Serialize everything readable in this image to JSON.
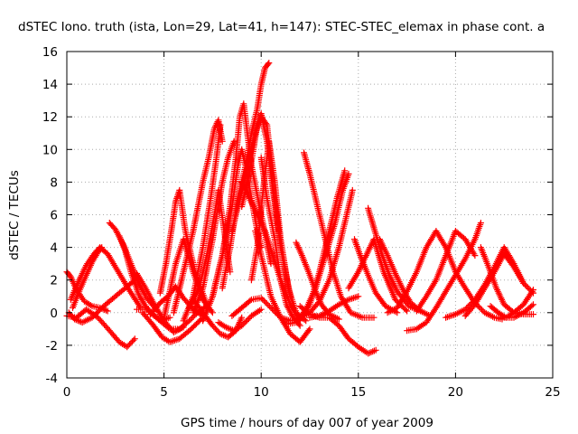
{
  "chart_data": {
    "type": "scatter",
    "title": "dSTEC Iono. truth (ista, Lon=29, Lat=41, h=147): STEC-STEC_elemax in phase cont. a",
    "xlabel": "GPS time / hours of day 007 of year 2009",
    "ylabel": "dSTEC  / TECUs",
    "xlim": [
      0,
      25
    ],
    "ylim": [
      -4,
      16
    ],
    "xticks": [
      0,
      5,
      10,
      15,
      20,
      25
    ],
    "yticks": [
      -4,
      -2,
      0,
      2,
      4,
      6,
      8,
      10,
      12,
      14,
      16
    ],
    "grid": true,
    "marker": "+",
    "color": "#ff0000",
    "series": [
      {
        "x": [
          0.0,
          0.2,
          0.5,
          0.9,
          1.3,
          1.7,
          2.1
        ],
        "y": [
          2.5,
          2.2,
          1.4,
          0.7,
          0.4,
          0.3,
          0.1
        ]
      },
      {
        "x": [
          0.1,
          0.4,
          0.8,
          1.3,
          1.9,
          2.5,
          3.1,
          3.5
        ],
        "y": [
          0.0,
          -0.4,
          -0.6,
          -0.3,
          0.4,
          1.0,
          1.6,
          2.0
        ]
      },
      {
        "x": [
          0.0,
          0.5,
          1.0,
          1.6,
          2.2,
          2.7,
          3.1,
          3.5
        ],
        "y": [
          -0.2,
          -0.3,
          0.2,
          -0.3,
          -1.1,
          -1.8,
          -2.1,
          -1.6
        ]
      },
      {
        "x": [
          0.2,
          0.6,
          1.0,
          1.4,
          1.7,
          2.1,
          2.6,
          3.2,
          3.8
        ],
        "y": [
          0.8,
          1.9,
          2.9,
          3.6,
          4.0,
          3.6,
          2.6,
          1.4,
          0.3
        ]
      },
      {
        "x": [
          0.3,
          0.6,
          1.0,
          1.3,
          1.6,
          1.8
        ],
        "y": [
          0.3,
          1.2,
          2.3,
          3.1,
          3.7,
          4.0
        ]
      },
      {
        "x": [
          2.2,
          2.5,
          2.9,
          3.3,
          3.7,
          4.1,
          4.6
        ],
        "y": [
          5.5,
          5.1,
          4.2,
          3.0,
          1.8,
          0.9,
          0.2
        ]
      },
      {
        "x": [
          2.7,
          3.0,
          3.3,
          3.7,
          4.2,
          4.8,
          5.3
        ],
        "y": [
          4.7,
          3.8,
          2.5,
          1.1,
          0.1,
          -0.5,
          -0.3
        ]
      },
      {
        "x": [
          3.6,
          4.0,
          4.5,
          5.0,
          5.5,
          6.0
        ],
        "y": [
          2.4,
          1.6,
          0.5,
          -0.5,
          -1.2,
          -0.9
        ]
      },
      {
        "x": [
          3.9,
          4.4,
          4.9,
          5.3,
          5.8,
          6.4,
          7.0
        ],
        "y": [
          0.0,
          -0.7,
          -1.5,
          -1.8,
          -1.6,
          -1.0,
          -0.3
        ]
      },
      {
        "x": [
          3.6,
          4.2,
          4.8,
          5.3,
          5.8,
          6.3,
          6.8,
          7.2
        ],
        "y": [
          0.2,
          0.2,
          -0.5,
          -1.0,
          -1.0,
          -0.5,
          0.1,
          0.4
        ]
      },
      {
        "x": [
          4.3,
          4.8,
          5.2,
          5.6,
          6.0,
          6.5,
          7.0
        ],
        "y": [
          -0.1,
          0.6,
          1.0,
          1.6,
          0.9,
          0.2,
          -0.2
        ]
      },
      {
        "x": [
          5.0,
          5.3,
          5.6,
          6.0,
          6.5,
          7.0,
          7.5
        ],
        "y": [
          -0.3,
          1.3,
          3.0,
          4.5,
          2.5,
          0.8,
          0.0
        ]
      },
      {
        "x": [
          4.8,
          5.1,
          5.4,
          5.6,
          5.8,
          6.1,
          6.6,
          7.2
        ],
        "y": [
          1.2,
          3.0,
          5.2,
          6.8,
          7.5,
          5.0,
          2.5,
          0.5
        ]
      },
      {
        "x": [
          5.5,
          6.0,
          6.5,
          7.0,
          7.3,
          7.6,
          7.8,
          8.0
        ],
        "y": [
          0.0,
          2.5,
          5.0,
          8.0,
          9.5,
          11.3,
          11.8,
          10.5
        ]
      },
      {
        "x": [
          6.0,
          6.5,
          7.0,
          7.4,
          7.7,
          7.9
        ],
        "y": [
          -0.5,
          1.0,
          4.0,
          7.0,
          9.5,
          11.5
        ]
      },
      {
        "x": [
          6.5,
          7.0,
          7.5,
          8.0,
          8.3,
          8.6
        ],
        "y": [
          0.0,
          1.5,
          4.5,
          8.0,
          9.5,
          10.5
        ]
      },
      {
        "x": [
          6.3,
          6.8,
          7.2,
          7.6,
          7.8,
          8.1,
          8.4
        ],
        "y": [
          0.3,
          1.5,
          3.5,
          6.0,
          7.5,
          5.0,
          2.5
        ]
      },
      {
        "x": [
          7.0,
          7.5,
          8.0,
          8.5,
          8.8,
          9.0,
          9.2,
          9.5,
          9.8,
          10.0
        ],
        "y": [
          -0.5,
          1.0,
          3.5,
          6.5,
          9.0,
          10.0,
          9.0,
          7.0,
          5.0,
          4.0
        ]
      },
      {
        "x": [
          7.5,
          8.0,
          8.4,
          8.7,
          8.9,
          9.1,
          9.5,
          10.0,
          10.5
        ],
        "y": [
          1.0,
          3.5,
          6.5,
          9.5,
          12.0,
          12.8,
          9.0,
          6.0,
          3.0
        ]
      },
      {
        "x": [
          8.0,
          8.4,
          8.8,
          9.2,
          9.5,
          9.8,
          10.0,
          10.2,
          10.4
        ],
        "y": [
          1.5,
          4.0,
          7.0,
          9.0,
          11.0,
          12.5,
          14.0,
          15.0,
          15.3
        ]
      },
      {
        "x": [
          8.5,
          9.0,
          9.5,
          9.7,
          10.0,
          10.3,
          10.6,
          11.0,
          11.5
        ],
        "y": [
          5.0,
          7.5,
          10.0,
          11.0,
          12.0,
          11.5,
          8.0,
          4.0,
          1.0
        ]
      },
      {
        "x": [
          9.0,
          9.3,
          9.6,
          9.8,
          10.0,
          10.3,
          10.6,
          10.9
        ],
        "y": [
          6.5,
          8.0,
          10.0,
          11.5,
          12.2,
          10.5,
          7.5,
          5.0
        ]
      },
      {
        "x": [
          9.5,
          9.8,
          10.1,
          10.4,
          10.7,
          11.0,
          11.4,
          11.8,
          12.3
        ],
        "y": [
          2.0,
          4.0,
          7.5,
          10.5,
          8.0,
          4.5,
          1.5,
          0.0,
          -0.5
        ]
      },
      {
        "x": [
          9.0,
          9.4,
          9.8,
          10.2,
          10.6,
          11.0,
          11.5,
          12.0
        ],
        "y": [
          8.0,
          7.0,
          6.0,
          5.0,
          3.5,
          2.0,
          0.5,
          -0.5
        ]
      },
      {
        "x": [
          10.0,
          10.3,
          10.7,
          11.0,
          11.3,
          11.6,
          12.0
        ],
        "y": [
          9.5,
          7.0,
          4.5,
          2.0,
          0.5,
          -0.2,
          -0.8
        ]
      },
      {
        "x": [
          9.7,
          10.1,
          10.5,
          11.0,
          11.5,
          12.0,
          12.5
        ],
        "y": [
          5.0,
          3.0,
          1.0,
          -0.3,
          -1.3,
          -1.8,
          -1.0
        ]
      },
      {
        "x": [
          8.5,
          9.0,
          9.5,
          10.0,
          10.5,
          11.0
        ],
        "y": [
          -0.2,
          0.3,
          0.8,
          0.9,
          0.3,
          -0.3
        ]
      },
      {
        "x": [
          6.5,
          7.0,
          7.5,
          7.9,
          8.3,
          8.7,
          9.0
        ],
        "y": [
          0.8,
          0.0,
          -0.8,
          -1.3,
          -1.5,
          -1.1,
          -0.3
        ]
      },
      {
        "x": [
          7.8,
          8.2,
          8.6,
          9.0,
          9.5,
          10.0
        ],
        "y": [
          -0.6,
          -0.9,
          -1.1,
          -0.8,
          -0.2,
          0.2
        ]
      },
      {
        "x": [
          11.0,
          11.5,
          12.0,
          12.5,
          13.0,
          13.5,
          13.9,
          14.3
        ],
        "y": [
          -0.3,
          -0.5,
          -0.4,
          0.5,
          2.5,
          5.0,
          7.0,
          8.7
        ]
      },
      {
        "x": [
          11.3,
          11.8,
          12.3,
          12.8,
          13.3,
          13.8,
          14.2,
          14.5
        ],
        "y": [
          -0.7,
          -0.6,
          0.2,
          1.5,
          3.5,
          5.5,
          7.5,
          8.5
        ]
      },
      {
        "x": [
          12.0,
          12.5,
          13.0,
          13.5,
          14.0,
          14.4,
          14.7
        ],
        "y": [
          -0.3,
          0.0,
          0.7,
          2.0,
          4.0,
          6.0,
          7.5
        ]
      },
      {
        "x": [
          12.2,
          12.5,
          12.9,
          13.3,
          13.7,
          14.1,
          14.6,
          15.2,
          15.8
        ],
        "y": [
          9.8,
          8.5,
          6.5,
          4.5,
          2.5,
          1.0,
          0.0,
          -0.3,
          -0.3
        ]
      },
      {
        "x": [
          11.8,
          12.1,
          12.5,
          12.8,
          13.1,
          13.5,
          14.0
        ],
        "y": [
          4.3,
          3.5,
          2.3,
          1.3,
          0.5,
          -0.1,
          -0.4
        ]
      },
      {
        "x": [
          12.0,
          12.5,
          13.0,
          13.5,
          14.0,
          14.5,
          15.0,
          15.5,
          15.9
        ],
        "y": [
          0.4,
          -0.1,
          -0.3,
          -0.3,
          -0.8,
          -1.6,
          -2.1,
          -2.5,
          -2.3
        ]
      },
      {
        "x": [
          12.5,
          13.0,
          13.5,
          14.0,
          14.5,
          15.0
        ],
        "y": [
          -0.3,
          -0.2,
          0.1,
          0.5,
          0.8,
          1.0
        ]
      },
      {
        "x": [
          14.5,
          15.0,
          15.4,
          15.8,
          16.3,
          16.9,
          17.5
        ],
        "y": [
          1.5,
          2.5,
          3.5,
          4.5,
          2.5,
          0.8,
          0.1
        ]
      },
      {
        "x": [
          14.8,
          15.1,
          15.5,
          15.9,
          16.4,
          17.0
        ],
        "y": [
          4.5,
          3.5,
          2.3,
          1.2,
          0.4,
          0.0
        ]
      },
      {
        "x": [
          15.5,
          15.8,
          16.2,
          16.6,
          17.0,
          17.6,
          18.2
        ],
        "y": [
          6.4,
          5.2,
          3.6,
          2.3,
          1.3,
          0.4,
          0.1
        ]
      },
      {
        "x": [
          16.1,
          16.5,
          16.9,
          17.3,
          17.7,
          18.2,
          18.7
        ],
        "y": [
          4.5,
          3.5,
          2.4,
          1.4,
          0.6,
          0.1,
          -0.2
        ]
      },
      {
        "x": [
          16.5,
          17.0,
          17.5,
          18.0,
          18.5,
          19.0,
          19.5,
          20.0
        ],
        "y": [
          0.0,
          0.3,
          1.3,
          2.5,
          4.0,
          5.0,
          4.0,
          2.5
        ]
      },
      {
        "x": [
          17.5,
          18.0,
          18.5,
          19.0,
          19.5,
          20.0,
          20.5,
          21.0,
          21.3
        ],
        "y": [
          -1.1,
          -1.0,
          -0.6,
          0.3,
          1.3,
          2.3,
          3.3,
          4.5,
          5.5
        ]
      },
      {
        "x": [
          18.0,
          18.5,
          19.0,
          19.5,
          20.0,
          20.5,
          21.0
        ],
        "y": [
          0.1,
          1.0,
          2.0,
          3.5,
          5.0,
          4.5,
          3.5
        ]
      },
      {
        "x": [
          19.5,
          20.0,
          20.5,
          21.0,
          21.5,
          22.0,
          22.5,
          23.0,
          23.5
        ],
        "y": [
          -0.3,
          -0.1,
          0.2,
          0.8,
          1.7,
          2.8,
          4.0,
          3.0,
          1.8
        ]
      },
      {
        "x": [
          20.0,
          20.5,
          21.0,
          21.5,
          22.0,
          22.4
        ],
        "y": [
          2.5,
          1.5,
          0.6,
          0.0,
          -0.3,
          -0.4
        ]
      },
      {
        "x": [
          20.5,
          21.0,
          21.5,
          22.0,
          22.5,
          23.0,
          23.5,
          24.0
        ],
        "y": [
          -0.2,
          0.5,
          1.5,
          2.5,
          3.6,
          2.8,
          1.8,
          1.2
        ]
      },
      {
        "x": [
          21.3,
          21.7,
          22.1,
          22.5,
          23.0,
          23.5,
          24.0
        ],
        "y": [
          4.0,
          2.8,
          1.5,
          0.5,
          0.0,
          0.5,
          1.4
        ]
      },
      {
        "x": [
          21.8,
          22.2,
          22.6,
          23.0,
          23.5,
          24.0
        ],
        "y": [
          0.4,
          0.0,
          -0.3,
          -0.3,
          0.0,
          0.5
        ]
      },
      {
        "x": [
          22.2,
          22.6,
          23.0,
          23.5,
          24.0
        ],
        "y": [
          -0.3,
          -0.3,
          0.0,
          -0.1,
          -0.1
        ]
      }
    ]
  }
}
